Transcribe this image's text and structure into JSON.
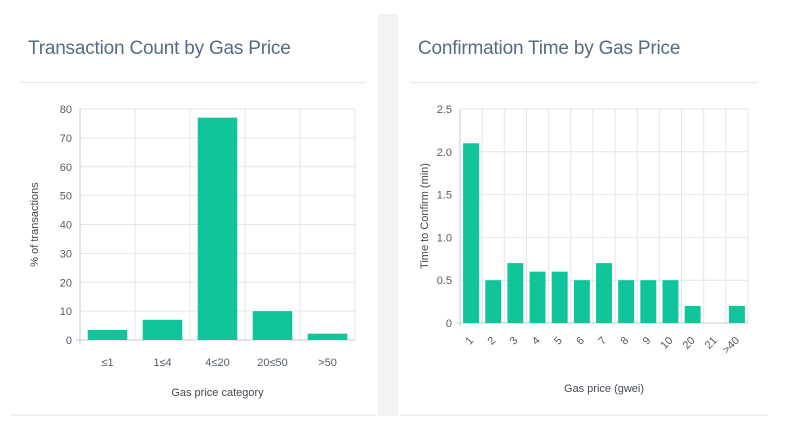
{
  "charts": {
    "left": {
      "title": "Transaction Count by Gas Price"
    },
    "right": {
      "title": "Confirmation Time by Gas Price"
    }
  },
  "chart_data": [
    {
      "type": "bar",
      "title": "Transaction Count by Gas Price",
      "categories": [
        "≤1",
        "1≤4",
        "4≤20",
        "20≤50",
        ">50"
      ],
      "values": [
        3.5,
        7,
        77,
        10,
        2.2
      ],
      "xlabel": "Gas price category",
      "ylabel": "% of transactions",
      "ylim": [
        0,
        80
      ],
      "yticks": [
        0,
        10,
        20,
        30,
        40,
        50,
        60,
        70,
        80
      ],
      "grid": true,
      "color": "#11c59a"
    },
    {
      "type": "bar",
      "title": "Confirmation Time by Gas Price",
      "categories": [
        "1",
        "2",
        "3",
        "4",
        "5",
        "6",
        "7",
        "8",
        "9",
        "10",
        "20",
        "21",
        ">40"
      ],
      "values": [
        2.1,
        0.5,
        0.7,
        0.6,
        0.6,
        0.5,
        0.7,
        0.5,
        0.5,
        0.5,
        0.2,
        0,
        0.2
      ],
      "xlabel": "Gas price (gwei)",
      "ylabel": "Time to Confirm (min)",
      "ylim": [
        0,
        2.5
      ],
      "yticks": [
        "0",
        "0.5",
        "1.0",
        "1.5",
        "2.0",
        "2.5"
      ],
      "grid": true,
      "color": "#11c59a"
    }
  ]
}
